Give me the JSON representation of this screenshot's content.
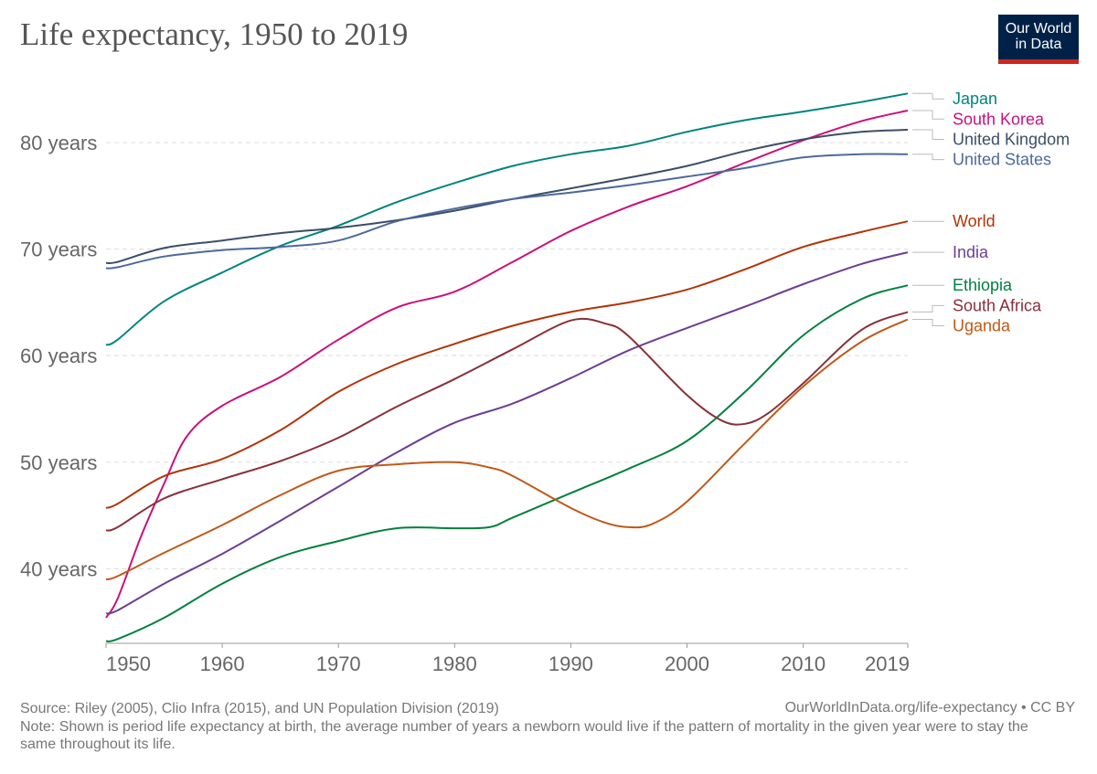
{
  "title": "Life expectancy, 1950 to 2019",
  "logo": {
    "line1": "Our World",
    "line2": "in Data",
    "bg_color": "#002147",
    "accent_color": "#ce261e"
  },
  "source_text": "Source: Riley (2005), Clio Infra (2015), and UN Population Division (2019)",
  "license_text": "OurWorldInData.org/life-expectancy • CC BY",
  "note_text": "Note: Shown is period life expectancy at birth, the average number of years a newborn would live if the pattern of mortality in the given year were to stay the same throughout its life.",
  "chart_data": {
    "type": "line",
    "title": "Life expectancy, 1950 to 2019",
    "xlabel": "",
    "ylabel": "",
    "xlim": [
      1950,
      2019
    ],
    "ylim": [
      33,
      86
    ],
    "x_ticks": [
      1950,
      1960,
      1970,
      1980,
      1990,
      2000,
      2010,
      2019
    ],
    "x_tick_labels": [
      "1950",
      "1960",
      "1970",
      "1980",
      "1990",
      "2000",
      "2010",
      "2019"
    ],
    "y_ticks": [
      40,
      50,
      60,
      70,
      80
    ],
    "y_tick_labels": [
      "40 years",
      "50 years",
      "60 years",
      "70 years",
      "80 years"
    ],
    "grid": "horizontal dashed",
    "legend": "right-end labels",
    "series": [
      {
        "name": "Japan",
        "color": "#00847e",
        "x": [
          1950,
          1951,
          1955,
          1960,
          1965,
          1970,
          1975,
          1980,
          1985,
          1990,
          1995,
          2000,
          2005,
          2010,
          2015,
          2019
        ],
        "values": [
          61.0,
          61.5,
          65.1,
          67.8,
          70.3,
          72.2,
          74.4,
          76.2,
          77.8,
          78.9,
          79.7,
          81.0,
          82.1,
          82.9,
          83.8,
          84.6
        ]
      },
      {
        "name": "South Korea",
        "color": "#c8117e",
        "x": [
          1950,
          1951,
          1953,
          1955,
          1957,
          1960,
          1965,
          1970,
          1975,
          1980,
          1985,
          1990,
          1995,
          2000,
          2005,
          2010,
          2015,
          2019
        ],
        "values": [
          35.4,
          37.2,
          43.0,
          48.0,
          52.5,
          55.3,
          58.0,
          61.5,
          64.5,
          66.0,
          68.8,
          71.7,
          74.0,
          75.9,
          78.1,
          80.2,
          82.0,
          83.0
        ]
      },
      {
        "name": "United Kingdom",
        "color": "#3c4e66",
        "x": [
          1950,
          1951,
          1955,
          1960,
          1965,
          1970,
          1975,
          1980,
          1985,
          1990,
          1995,
          2000,
          2005,
          2010,
          2015,
          2019
        ],
        "values": [
          68.7,
          68.8,
          70.1,
          70.8,
          71.5,
          72.0,
          72.7,
          73.6,
          74.7,
          75.7,
          76.7,
          77.8,
          79.2,
          80.3,
          81.0,
          81.2
        ]
      },
      {
        "name": "United States",
        "color": "#4c6a9c",
        "x": [
          1950,
          1951,
          1955,
          1960,
          1965,
          1970,
          1975,
          1980,
          1985,
          1990,
          1995,
          2000,
          2005,
          2010,
          2015,
          2019
        ],
        "values": [
          68.2,
          68.3,
          69.3,
          69.9,
          70.2,
          70.8,
          72.6,
          73.8,
          74.7,
          75.3,
          76.0,
          76.8,
          77.6,
          78.6,
          78.9,
          78.9
        ]
      },
      {
        "name": "World",
        "color": "#b13507",
        "x": [
          1950,
          1951,
          1955,
          1960,
          1965,
          1970,
          1975,
          1980,
          1985,
          1990,
          1995,
          2000,
          2005,
          2010,
          2015,
          2019
        ],
        "values": [
          45.7,
          46.1,
          48.7,
          50.3,
          53.0,
          56.6,
          59.2,
          61.1,
          62.8,
          64.1,
          65.0,
          66.2,
          68.1,
          70.2,
          71.6,
          72.6
        ]
      },
      {
        "name": "India",
        "color": "#6d3e91",
        "x": [
          1950,
          1951,
          1955,
          1960,
          1965,
          1970,
          1975,
          1980,
          1985,
          1990,
          1995,
          2000,
          2005,
          2010,
          2015,
          2019
        ],
        "values": [
          35.8,
          36.1,
          38.6,
          41.4,
          44.5,
          47.7,
          50.9,
          53.7,
          55.5,
          57.9,
          60.5,
          62.6,
          64.6,
          66.7,
          68.6,
          69.7
        ]
      },
      {
        "name": "Ethiopia",
        "color": "#00813f",
        "x": [
          1950,
          1951,
          1955,
          1960,
          1965,
          1970,
          1975,
          1980,
          1983,
          1985,
          1990,
          1995,
          2000,
          2005,
          2010,
          2015,
          2019
        ],
        "values": [
          33.2,
          33.4,
          35.4,
          38.6,
          41.1,
          42.6,
          43.8,
          43.8,
          43.9,
          44.8,
          47.1,
          49.4,
          52.0,
          56.6,
          61.9,
          65.3,
          66.6
        ]
      },
      {
        "name": "South Africa",
        "color": "#883039",
        "x": [
          1950,
          1951,
          1955,
          1960,
          1965,
          1970,
          1975,
          1980,
          1985,
          1990,
          1993,
          1995,
          2000,
          2003,
          2005,
          2007,
          2010,
          2015,
          2019
        ],
        "values": [
          43.6,
          43.9,
          46.6,
          48.4,
          50.1,
          52.3,
          55.2,
          57.8,
          60.6,
          63.3,
          63.0,
          61.8,
          56.3,
          53.9,
          53.6,
          54.6,
          57.4,
          62.4,
          64.1
        ]
      },
      {
        "name": "Uganda",
        "color": "#c05917",
        "x": [
          1950,
          1951,
          1955,
          1960,
          1965,
          1970,
          1975,
          1980,
          1983,
          1985,
          1990,
          1993,
          1995,
          1997,
          2000,
          2005,
          2010,
          2015,
          2019
        ],
        "values": [
          39.0,
          39.3,
          41.5,
          44.1,
          46.9,
          49.2,
          49.8,
          50.0,
          49.5,
          48.7,
          45.7,
          44.3,
          43.9,
          44.2,
          46.3,
          51.8,
          57.1,
          61.3,
          63.4
        ]
      }
    ]
  }
}
